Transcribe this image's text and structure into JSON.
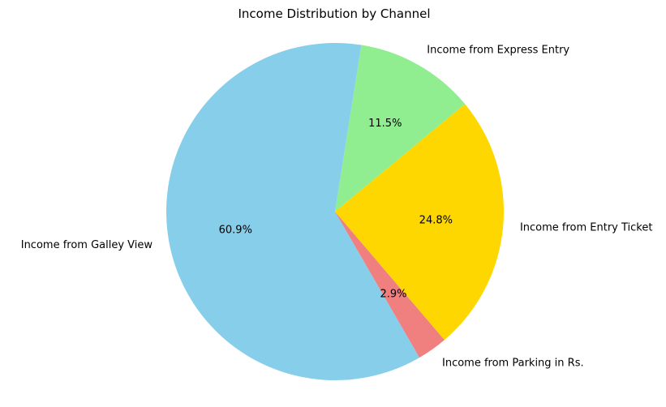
{
  "chart_data": {
    "type": "pie",
    "title": "Income Distribution by Channel",
    "start_angle_deg": 81,
    "direction": "counterclockwise",
    "legend": "none",
    "slices": [
      {
        "label": "Income from Galley View",
        "value": 60.9,
        "pct_label": "60.9%",
        "color": "#87CEEB"
      },
      {
        "label": "Income from Parking in Rs.",
        "value": 2.9,
        "pct_label": "2.9%",
        "color": "#F08080"
      },
      {
        "label": "Income from Entry Ticket",
        "value": 24.8,
        "pct_label": "24.8%",
        "color": "#FFD700"
      },
      {
        "label": "Income from Express Entry",
        "value": 11.5,
        "pct_label": "11.5%",
        "color": "#90EE90"
      }
    ]
  }
}
